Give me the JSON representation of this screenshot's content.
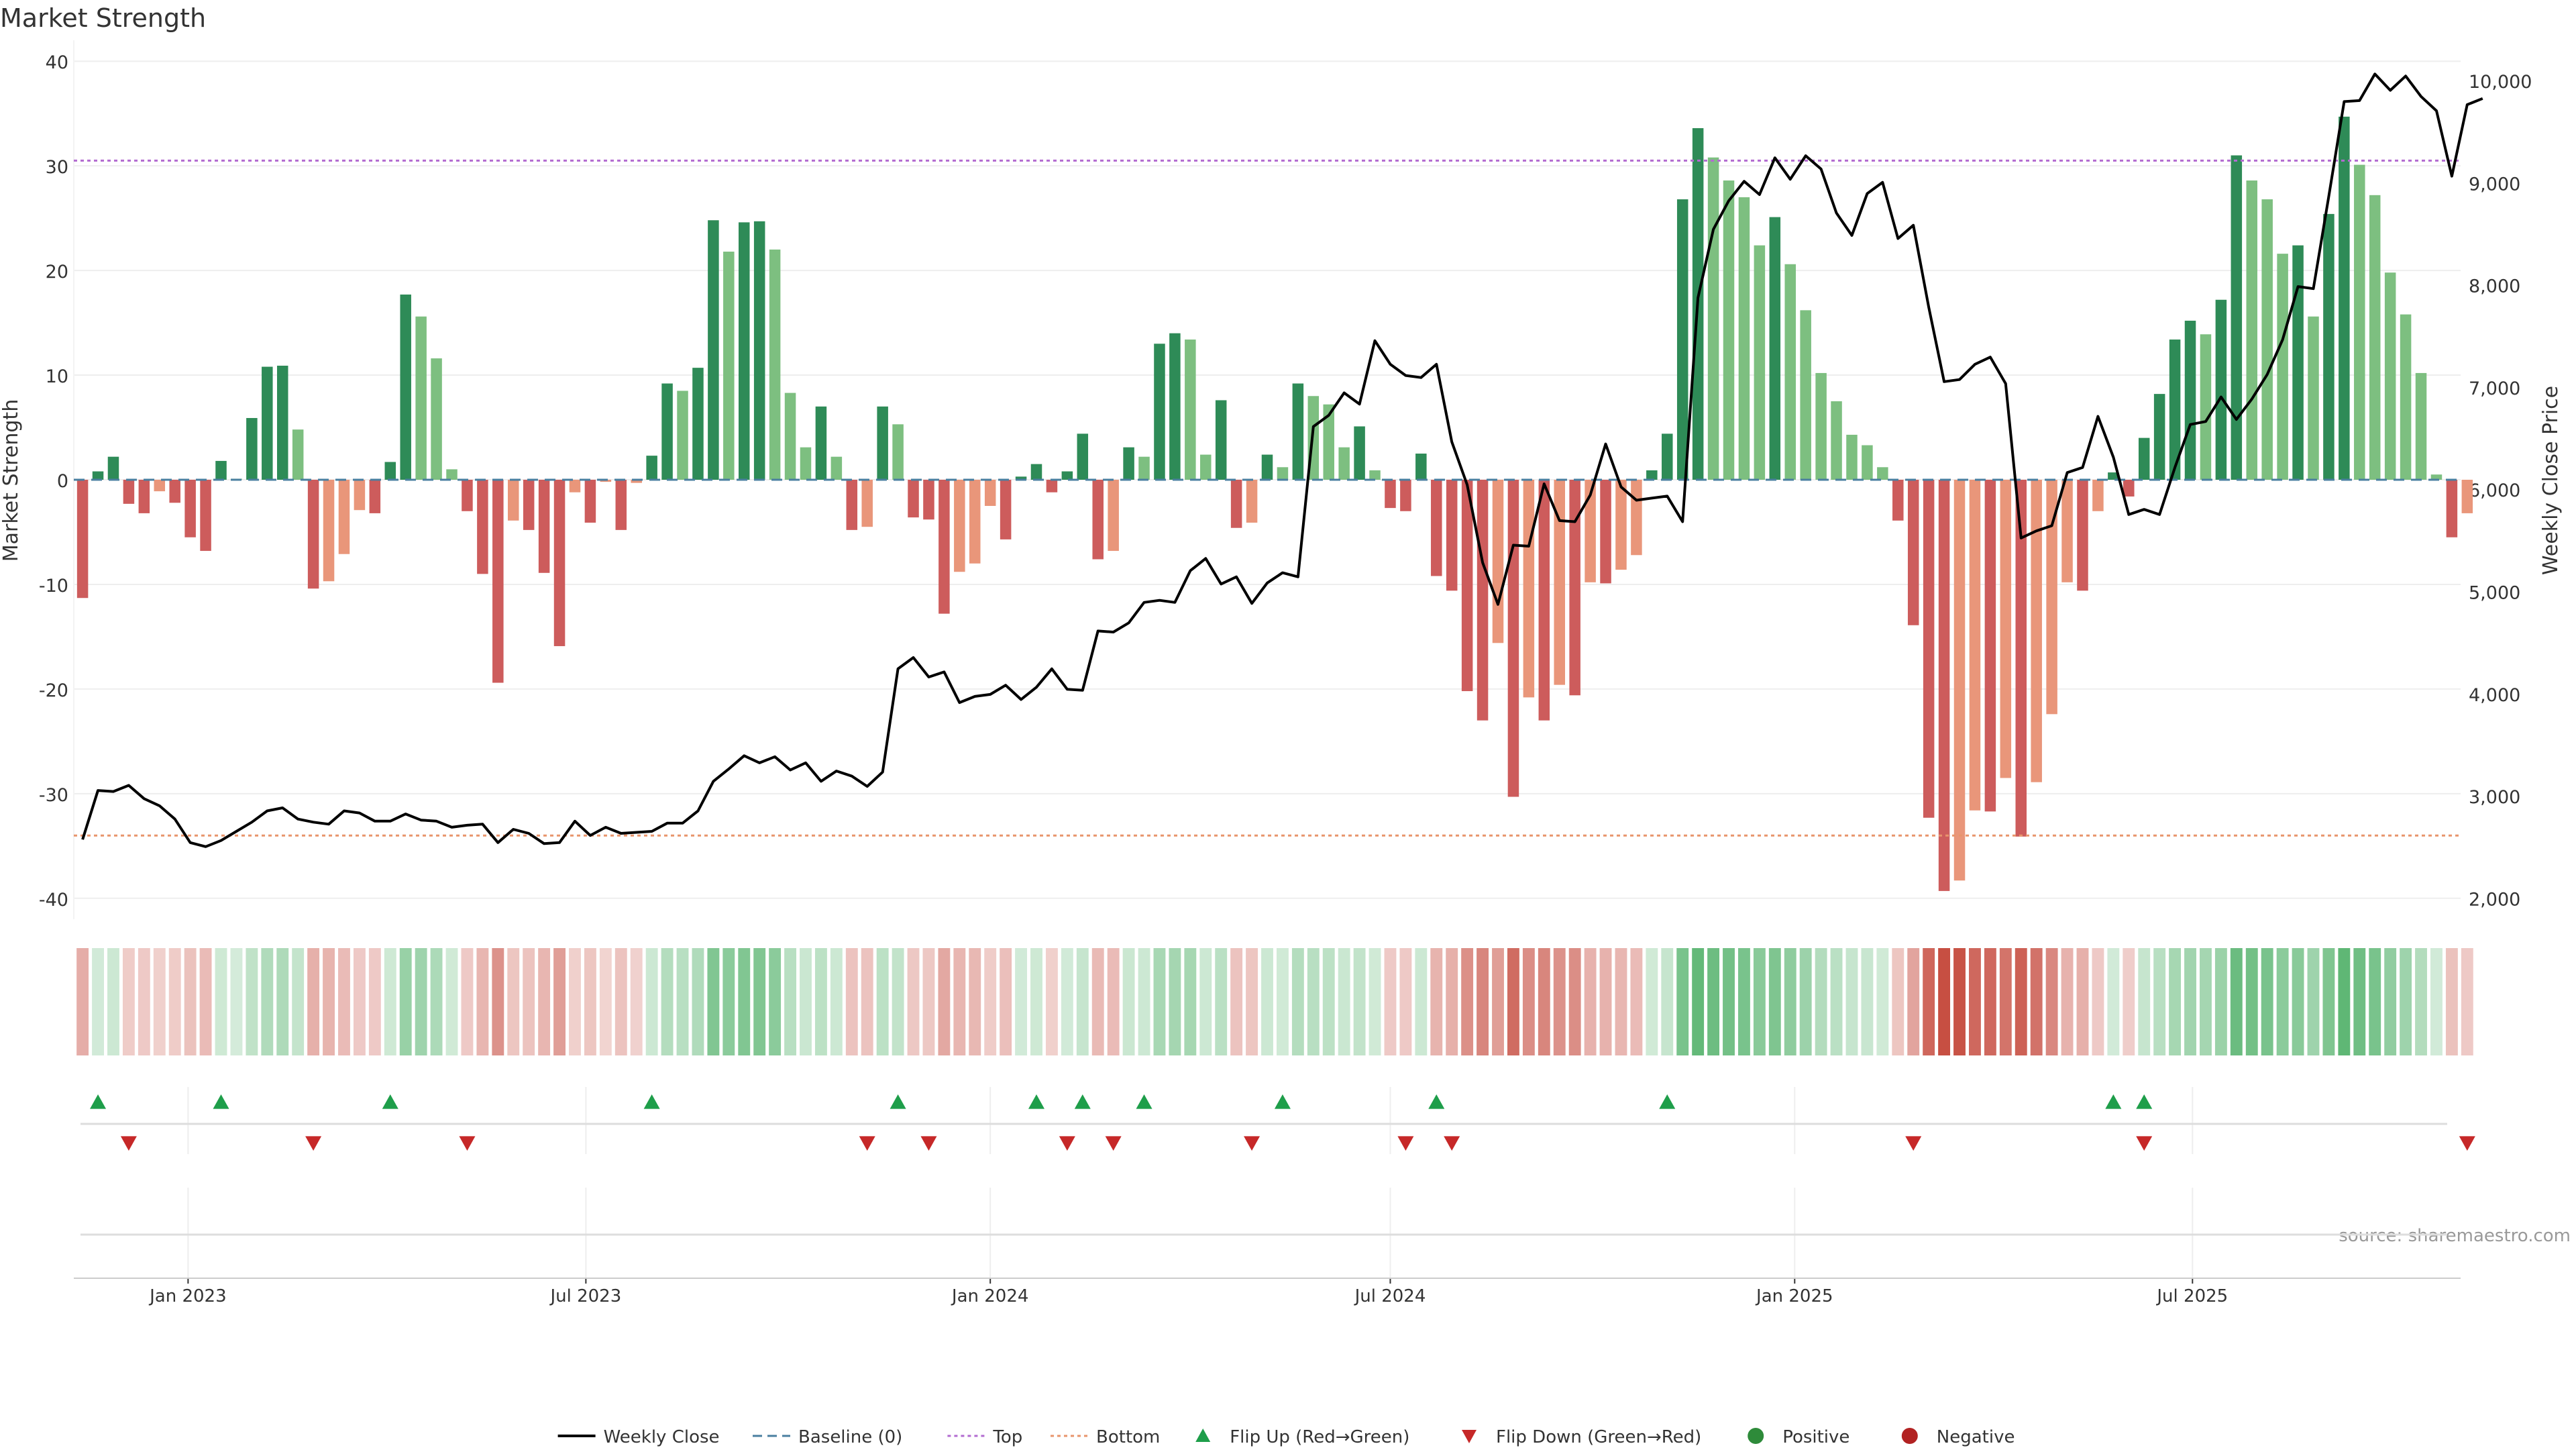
{
  "chart_data": {
    "type": "bar",
    "title": "Market Strength",
    "ylabel": "Market Strength",
    "y2label": "Weekly Close Price",
    "ylim": [
      -42,
      42
    ],
    "y2lim": [
      1800,
      10400
    ],
    "yticks": [
      40,
      30,
      20,
      10,
      0,
      -10,
      -20,
      -30,
      -40
    ],
    "y2ticks": [
      10000,
      9000,
      8000,
      7000,
      6000,
      5000,
      4000,
      3000,
      2000
    ],
    "y2tick_labels": [
      "10,000",
      "9,000",
      "8,000",
      "7,000",
      "6,000",
      "5,000",
      "4,000",
      "3,000",
      "2,000"
    ],
    "x_start": "2022-11-14",
    "x_step_days": 7,
    "xlim": [
      "2022-11-10",
      "2025-10-31"
    ],
    "xticks": [
      {
        "date": "2023-01-01",
        "label": "Jan 2023"
      },
      {
        "date": "2023-07-01",
        "label": "Jul 2023"
      },
      {
        "date": "2024-01-01",
        "label": "Jan 2024"
      },
      {
        "date": "2024-07-01",
        "label": "Jul 2024"
      },
      {
        "date": "2025-01-01",
        "label": "Jan 2025"
      },
      {
        "date": "2025-07-01",
        "label": "Jul 2025"
      }
    ],
    "top_line": 30.5,
    "bottom_line": -34,
    "strength": [
      -11.3,
      0.8,
      2.2,
      -2.3,
      -3.2,
      -1.1,
      -2.2,
      -5.5,
      -6.8,
      1.8,
      0.1,
      5.9,
      10.8,
      10.9,
      4.8,
      -10.4,
      -9.7,
      -7.1,
      -2.9,
      -3.2,
      1.7,
      17.7,
      15.6,
      11.6,
      1.0,
      -3.0,
      -9.0,
      -19.4,
      -3.9,
      -4.8,
      -8.9,
      -15.9,
      -1.2,
      -4.1,
      -0.2,
      -4.8,
      -0.3,
      2.3,
      9.2,
      8.5,
      10.7,
      24.8,
      21.8,
      24.6,
      24.7,
      22.0,
      8.3,
      3.1,
      7.0,
      2.2,
      -4.8,
      -4.5,
      7.0,
      5.3,
      -3.6,
      -3.8,
      -12.8,
      -8.8,
      -8.0,
      -2.5,
      -5.7,
      0.3,
      1.5,
      -1.2,
      0.8,
      4.4,
      -7.6,
      -6.8,
      3.1,
      2.2,
      13.0,
      14.0,
      13.4,
      2.4,
      7.6,
      -4.6,
      -4.1,
      2.4,
      1.2,
      9.2,
      8.0,
      7.2,
      3.1,
      5.1,
      0.9,
      -2.7,
      -3.0,
      2.5,
      -9.2,
      -10.6,
      -20.2,
      -23.0,
      -15.6,
      -30.3,
      -20.8,
      -23.0,
      -19.6,
      -20.6,
      -9.8,
      -9.9,
      -8.6,
      -7.2,
      0.9,
      4.4,
      26.8,
      33.6,
      30.8,
      28.6,
      27.0,
      22.4,
      25.1,
      20.6,
      16.2,
      10.2,
      7.5,
      4.3,
      3.3,
      1.2,
      -3.9,
      -13.9,
      -32.3,
      -39.3,
      -38.3,
      -31.6,
      -31.7,
      -28.5,
      -34.1,
      -28.9,
      -22.4,
      -9.8,
      -10.6,
      -3.0,
      0.7,
      -1.6,
      4.0,
      8.2,
      13.4,
      15.2,
      13.9,
      17.2,
      31.0,
      28.6,
      26.8,
      21.6,
      22.4,
      15.6,
      25.4,
      34.7,
      30.1,
      27.2,
      19.8,
      15.8,
      10.2,
      0.5,
      -5.5,
      -3.2
    ],
    "weekly_close": [
      2580,
      3060,
      3050,
      3110,
      2980,
      2910,
      2780,
      2550,
      2510,
      2570,
      2660,
      2750,
      2860,
      2890,
      2780,
      2750,
      2730,
      2860,
      2840,
      2760,
      2760,
      2830,
      2770,
      2760,
      2700,
      2720,
      2730,
      2550,
      2680,
      2640,
      2540,
      2550,
      2760,
      2620,
      2700,
      2640,
      2650,
      2660,
      2740,
      2740,
      2860,
      3150,
      3270,
      3400,
      3330,
      3390,
      3260,
      3330,
      3150,
      3250,
      3200,
      3100,
      3240,
      4250,
      4360,
      4170,
      4220,
      3920,
      3980,
      4000,
      4090,
      3950,
      4070,
      4250,
      4050,
      4040,
      4620,
      4610,
      4700,
      4900,
      4920,
      4900,
      5210,
      5330,
      5080,
      5150,
      4890,
      5090,
      5190,
      5150,
      6620,
      6730,
      6950,
      6840,
      7460,
      7230,
      7120,
      7100,
      7230,
      6470,
      6050,
      5290,
      4880,
      5460,
      5450,
      6060,
      5700,
      5690,
      5950,
      6450,
      6030,
      5900,
      5920,
      5940,
      5690,
      7880,
      8550,
      8830,
      9020,
      8890,
      9250,
      9040,
      9270,
      9140,
      8710,
      8490,
      8900,
      9010,
      8460,
      8590,
      7790,
      7060,
      7080,
      7230,
      7300,
      7040,
      5530,
      5600,
      5650,
      6170,
      6220,
      6720,
      6320,
      5760,
      5810,
      5760,
      6220,
      6640,
      6670,
      6910,
      6690,
      6890,
      7130,
      7470,
      7990,
      7970,
      8870,
      9800,
      9810,
      10070,
      9910,
      10050,
      9850,
      9710,
      9070,
      9770,
      9830
    ],
    "heat_strip": [
      -11.3,
      0.8,
      2.2,
      -2.3,
      -3.2,
      -1.1,
      -2.2,
      -5.5,
      -6.8,
      1.8,
      0.1,
      5.9,
      10.8,
      10.9,
      4.8,
      -10.4,
      -9.7,
      -7.1,
      -2.9,
      -3.2,
      1.7,
      17.7,
      15.6,
      11.6,
      1.0,
      -3.0,
      -9.0,
      -19.4,
      -3.9,
      -4.8,
      -8.9,
      -15.9,
      -1.2,
      -4.1,
      -0.2,
      -4.8,
      -0.3,
      2.3,
      9.2,
      8.5,
      10.7,
      24.8,
      21.8,
      24.6,
      24.7,
      22.0,
      8.3,
      3.1,
      7.0,
      2.2,
      -4.8,
      -4.5,
      7.0,
      5.3,
      -3.6,
      -3.8,
      -12.8,
      -8.8,
      -8.0,
      -2.5,
      -5.7,
      0.3,
      1.5,
      -1.2,
      0.8,
      4.4,
      -7.6,
      -6.8,
      3.1,
      2.2,
      13.0,
      14.0,
      13.4,
      2.4,
      7.6,
      -4.6,
      -4.1,
      2.4,
      1.2,
      9.2,
      8.0,
      7.2,
      3.1,
      5.1,
      0.9,
      -2.7,
      -3.0,
      2.5,
      -9.2,
      -10.6,
      -20.2,
      -23.0,
      -15.6,
      -30.3,
      -20.8,
      -23.0,
      -19.6,
      -20.6,
      -9.8,
      -9.9,
      -8.6,
      -7.2,
      0.9,
      4.4,
      26.8,
      33.6,
      30.8,
      28.6,
      27.0,
      22.4,
      25.1,
      20.6,
      16.2,
      10.2,
      7.5,
      4.3,
      3.3,
      1.2,
      -3.9,
      -13.9,
      -32.3,
      -39.3,
      -38.3,
      -31.6,
      -31.7,
      -28.5,
      -34.1,
      -28.9,
      -22.4,
      -9.8,
      -10.6,
      -3.0,
      0.7,
      -1.6,
      4.0,
      8.2,
      13.4,
      15.2,
      13.9,
      17.2,
      31.0,
      28.6,
      26.8,
      21.6,
      22.4,
      15.6,
      25.4,
      34.7,
      30.1,
      27.2,
      19.8,
      15.8,
      10.2,
      0.5,
      -5.5,
      -3.2
    ],
    "flip_up_weeks": [
      1,
      9,
      20,
      37,
      53,
      62,
      65,
      69,
      78,
      88,
      103,
      132,
      134
    ],
    "flip_down_weeks": [
      3,
      15,
      25,
      51,
      55,
      64,
      67,
      76,
      86,
      89,
      119,
      134,
      155
    ],
    "legend": [
      {
        "label": "Weekly Close",
        "kind": "line",
        "color": "#000000"
      },
      {
        "label": "Baseline (0)",
        "kind": "dashed",
        "color": "#4a7fa0"
      },
      {
        "label": "Top",
        "kind": "dotted",
        "color": "#b26bd0"
      },
      {
        "label": "Bottom",
        "kind": "dotted",
        "color": "#e8956c"
      },
      {
        "label": "Flip Up (Red→Green)",
        "kind": "tri-up",
        "color": "#1e9e4a"
      },
      {
        "label": "Flip Down (Green→Red)",
        "kind": "tri-down",
        "color": "#c62828"
      },
      {
        "label": "Positive",
        "kind": "dot",
        "color": "#2e8b3a"
      },
      {
        "label": "Negative",
        "kind": "dot",
        "color": "#b22222"
      }
    ],
    "legend_placement": "bottom-center",
    "grid": true,
    "source": "source: sharemaestro.com",
    "colors": {
      "pos_strong": "#2e8b57",
      "pos_weak": "#7dbf80",
      "neg_strong": "#cd5c5c",
      "neg_weak": "#e9967a",
      "line": "#000000",
      "top": "#b26bd0",
      "bottom": "#e8956c",
      "baseline": "#4a7fa0",
      "flip_up": "#1e9e4a",
      "flip_down": "#c62828"
    }
  }
}
